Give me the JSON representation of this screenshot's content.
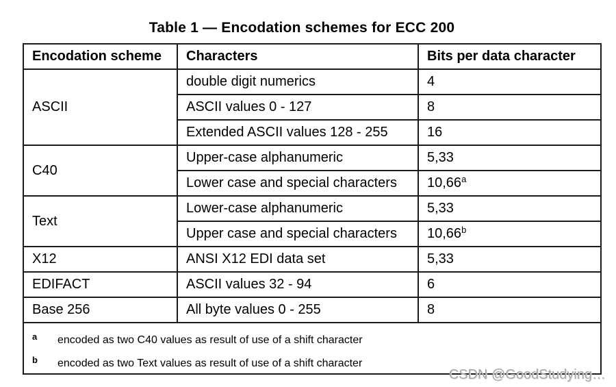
{
  "title": "Table 1 — Encodation schemes for ECC 200",
  "table": {
    "headers": [
      "Encodation scheme",
      "Characters",
      "Bits per data character"
    ],
    "groups": [
      {
        "scheme": "ASCII",
        "rows": [
          {
            "characters": "double digit numerics",
            "bits": "4"
          },
          {
            "characters": "ASCII values 0 - 127",
            "bits": "8"
          },
          {
            "characters": "Extended ASCII values 128 - 255",
            "bits": "16"
          }
        ]
      },
      {
        "scheme": "C40",
        "rows": [
          {
            "characters": "Upper-case alphanumeric",
            "bits": "5,33"
          },
          {
            "characters": "Lower case and special characters",
            "bits": "10,66",
            "bits_sup": "a"
          }
        ]
      },
      {
        "scheme": "Text",
        "rows": [
          {
            "characters": "Lower-case alphanumeric",
            "bits": "5,33"
          },
          {
            "characters": "Upper case and special characters",
            "bits": "10,66",
            "bits_sup": "b"
          }
        ]
      },
      {
        "scheme": "X12",
        "rows": [
          {
            "characters": "ANSI X12 EDI data set",
            "bits": "5,33"
          }
        ]
      },
      {
        "scheme": "EDIFACT",
        "rows": [
          {
            "characters": "ASCII values 32 - 94",
            "bits": "6"
          }
        ]
      },
      {
        "scheme": "Base 256",
        "rows": [
          {
            "characters": "All byte values 0 - 255",
            "bits": "8"
          }
        ]
      }
    ]
  },
  "footnotes": [
    {
      "marker": "a",
      "text": "encoded as two C40 values as result of use of a shift character"
    },
    {
      "marker": "b",
      "text": "encoded as two Text values as result of use of a shift character"
    }
  ],
  "watermark": "CSDN @GoodStudying…",
  "colors": {
    "text": "#000000",
    "border": "#1b1b1b",
    "background": "#ffffff",
    "watermark": "#a6a6a6"
  }
}
